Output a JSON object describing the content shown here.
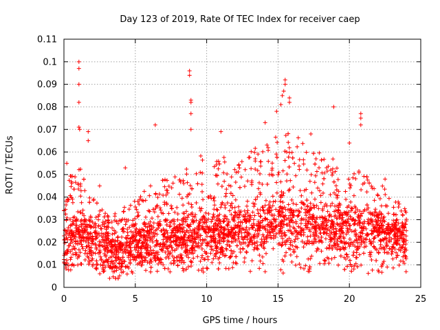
{
  "chart_data": {
    "type": "scatter",
    "title": "Day 123 of 2019, Rate Of TEC Index for receiver caep",
    "xlabel": "GPS time / hours",
    "ylabel": "ROTI / TECUs",
    "xlim": [
      0,
      25
    ],
    "ylim": [
      0,
      0.11
    ],
    "xticks": [
      0,
      5,
      10,
      15,
      20,
      25
    ],
    "yticks": [
      0,
      0.01,
      0.02,
      0.03,
      0.04,
      0.05,
      0.06,
      0.07,
      0.08,
      0.09,
      0.1,
      0.11
    ],
    "xtick_labels": [
      "0",
      "5",
      "10",
      "15",
      "20",
      "25"
    ],
    "ytick_labels": [
      "0",
      "0.01",
      "0.02",
      "0.03",
      "0.04",
      "0.05",
      "0.06",
      "0.07",
      "0.08",
      "0.09",
      "0.1",
      "0.11"
    ],
    "grid": true,
    "marker": "+",
    "marker_color": "#ff0000",
    "data_x_range": [
      0,
      24
    ],
    "baseline_profile": {
      "x": [
        0,
        1,
        2,
        3,
        4,
        5,
        6,
        7,
        8,
        9,
        10,
        11,
        12,
        13,
        14,
        15,
        16,
        17,
        18,
        19,
        20,
        21,
        22,
        23,
        24
      ],
      "median": [
        0.018,
        0.024,
        0.02,
        0.016,
        0.016,
        0.019,
        0.02,
        0.021,
        0.021,
        0.022,
        0.025,
        0.023,
        0.023,
        0.026,
        0.027,
        0.028,
        0.028,
        0.027,
        0.025,
        0.026,
        0.025,
        0.025,
        0.024,
        0.022,
        0.02
      ],
      "upper": [
        0.045,
        0.055,
        0.04,
        0.032,
        0.035,
        0.04,
        0.045,
        0.048,
        0.05,
        0.055,
        0.062,
        0.06,
        0.058,
        0.06,
        0.065,
        0.068,
        0.07,
        0.062,
        0.06,
        0.058,
        0.055,
        0.05,
        0.048,
        0.04,
        0.035
      ]
    },
    "notable_points": [
      {
        "x": 1.05,
        "y": 0.1
      },
      {
        "x": 1.05,
        "y": 0.097
      },
      {
        "x": 1.05,
        "y": 0.09
      },
      {
        "x": 1.05,
        "y": 0.082
      },
      {
        "x": 1.05,
        "y": 0.071
      },
      {
        "x": 1.1,
        "y": 0.07
      },
      {
        "x": 1.7,
        "y": 0.069
      },
      {
        "x": 1.7,
        "y": 0.065
      },
      {
        "x": 0.2,
        "y": 0.055
      },
      {
        "x": 8.8,
        "y": 0.096
      },
      {
        "x": 8.8,
        "y": 0.094
      },
      {
        "x": 8.9,
        "y": 0.083
      },
      {
        "x": 8.9,
        "y": 0.082
      },
      {
        "x": 8.9,
        "y": 0.077
      },
      {
        "x": 8.9,
        "y": 0.07
      },
      {
        "x": 6.4,
        "y": 0.072
      },
      {
        "x": 11.0,
        "y": 0.069
      },
      {
        "x": 14.1,
        "y": 0.073
      },
      {
        "x": 14.9,
        "y": 0.078
      },
      {
        "x": 15.5,
        "y": 0.092
      },
      {
        "x": 15.5,
        "y": 0.09
      },
      {
        "x": 15.4,
        "y": 0.087
      },
      {
        "x": 15.3,
        "y": 0.085
      },
      {
        "x": 15.2,
        "y": 0.081
      },
      {
        "x": 15.8,
        "y": 0.084
      },
      {
        "x": 15.8,
        "y": 0.082
      },
      {
        "x": 18.9,
        "y": 0.08
      },
      {
        "x": 20.8,
        "y": 0.077
      },
      {
        "x": 20.8,
        "y": 0.075
      },
      {
        "x": 20.8,
        "y": 0.072
      },
      {
        "x": 17.3,
        "y": 0.068
      },
      {
        "x": 20.0,
        "y": 0.064
      },
      {
        "x": 22.5,
        "y": 0.048
      },
      {
        "x": 4.3,
        "y": 0.053
      },
      {
        "x": 2.5,
        "y": 0.045
      },
      {
        "x": 3.2,
        "y": 0.004
      }
    ]
  }
}
